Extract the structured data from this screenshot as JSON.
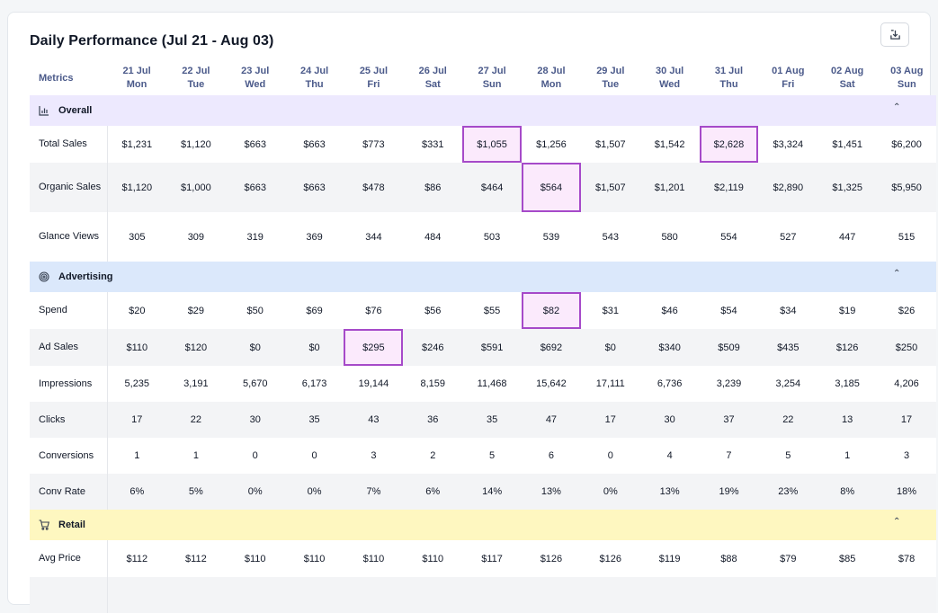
{
  "panel": {
    "title": "Daily Performance (Jul 21 - Aug 03)",
    "export_icon": "download-icon"
  },
  "table": {
    "metrics_header": "Metrics",
    "days": [
      {
        "date": "21 Jul",
        "dow": "Mon"
      },
      {
        "date": "22 Jul",
        "dow": "Tue"
      },
      {
        "date": "23 Jul",
        "dow": "Wed"
      },
      {
        "date": "24 Jul",
        "dow": "Thu"
      },
      {
        "date": "25 Jul",
        "dow": "Fri"
      },
      {
        "date": "26 Jul",
        "dow": "Sat"
      },
      {
        "date": "27 Jul",
        "dow": "Sun"
      },
      {
        "date": "28 Jul",
        "dow": "Mon"
      },
      {
        "date": "29 Jul",
        "dow": "Tue"
      },
      {
        "date": "30 Jul",
        "dow": "Wed"
      },
      {
        "date": "31 Jul",
        "dow": "Thu"
      },
      {
        "date": "01 Aug",
        "dow": "Fri"
      },
      {
        "date": "02 Aug",
        "dow": "Sat"
      },
      {
        "date": "03 Aug",
        "dow": "Sun"
      }
    ],
    "sections": {
      "overall": {
        "label": "Overall",
        "icon": "bar-chart-icon",
        "rows": [
          {
            "label": "Total Sales",
            "values": [
              "$1,231",
              "$1,120",
              "$663",
              "$663",
              "$773",
              "$331",
              "$1,055",
              "$1,256",
              "$1,507",
              "$1,542",
              "$2,628",
              "$3,324",
              "$1,451",
              "$6,200"
            ]
          },
          {
            "label": "Organic Sales",
            "values": [
              "$1,120",
              "$1,000",
              "$663",
              "$663",
              "$478",
              "$86",
              "$464",
              "$564",
              "$1,507",
              "$1,201",
              "$2,119",
              "$2,890",
              "$1,325",
              "$5,950"
            ]
          },
          {
            "label": "Glance Views",
            "values": [
              "305",
              "309",
              "319",
              "369",
              "344",
              "484",
              "503",
              "539",
              "543",
              "580",
              "554",
              "527",
              "447",
              "515"
            ]
          }
        ]
      },
      "advertising": {
        "label": "Advertising",
        "icon": "target-icon",
        "rows": [
          {
            "label": "Spend",
            "values": [
              "$20",
              "$29",
              "$50",
              "$69",
              "$76",
              "$56",
              "$55",
              "$82",
              "$31",
              "$46",
              "$54",
              "$34",
              "$19",
              "$26"
            ]
          },
          {
            "label": "Ad Sales",
            "values": [
              "$110",
              "$120",
              "$0",
              "$0",
              "$295",
              "$246",
              "$591",
              "$692",
              "$0",
              "$340",
              "$509",
              "$435",
              "$126",
              "$250"
            ]
          },
          {
            "label": "Impressions",
            "values": [
              "5,235",
              "3,191",
              "5,670",
              "6,173",
              "19,144",
              "8,159",
              "11,468",
              "15,642",
              "17,111",
              "6,736",
              "3,239",
              "3,254",
              "3,185",
              "4,206"
            ]
          },
          {
            "label": "Clicks",
            "values": [
              "17",
              "22",
              "30",
              "35",
              "43",
              "36",
              "35",
              "47",
              "17",
              "30",
              "37",
              "22",
              "13",
              "17"
            ]
          },
          {
            "label": "Conversions",
            "values": [
              "1",
              "1",
              "0",
              "0",
              "3",
              "2",
              "5",
              "6",
              "0",
              "4",
              "7",
              "5",
              "1",
              "3"
            ]
          },
          {
            "label": "Conv Rate",
            "values": [
              "6%",
              "5%",
              "0%",
              "0%",
              "7%",
              "6%",
              "14%",
              "13%",
              "0%",
              "13%",
              "19%",
              "23%",
              "8%",
              "18%"
            ]
          }
        ]
      },
      "retail": {
        "label": "Retail",
        "icon": "shopping-cart-icon",
        "rows": [
          {
            "label": "Avg Price",
            "values": [
              "$112",
              "$112",
              "$110",
              "$110",
              "$110",
              "$110",
              "$117",
              "$126",
              "$126",
              "$119",
              "$88",
              "$79",
              "$85",
              "$78"
            ]
          }
        ]
      }
    }
  },
  "colors": {
    "overall_bg": "#ede9fe",
    "advertising_bg": "#dbe8fb",
    "retail_bg": "#fef7c0",
    "highlight_border": "#a64ac9",
    "highlight_bg": "#fbeafc",
    "header_text": "#4b5a8a"
  }
}
